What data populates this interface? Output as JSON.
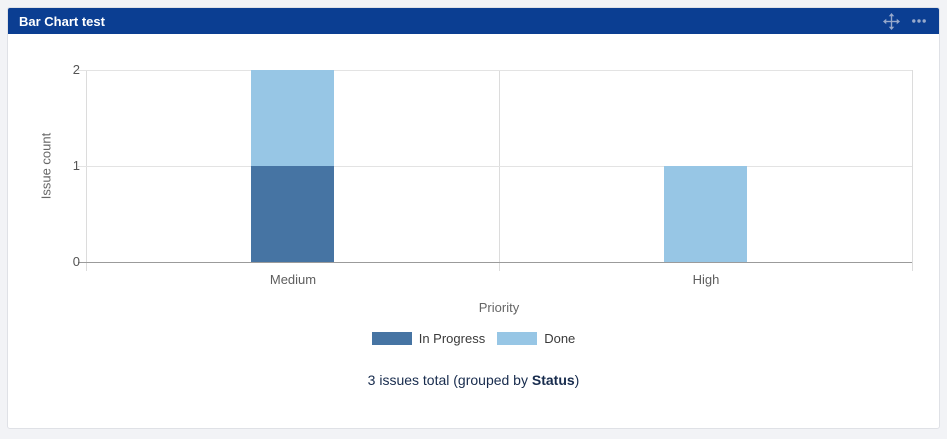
{
  "page": {
    "background": "#F2F3F6"
  },
  "gadget": {
    "title": "Bar Chart test",
    "header_color": "#0B3E92",
    "icons": [
      {
        "name": "move-gadget-icon"
      },
      {
        "name": "more-options-icon"
      }
    ],
    "icon_color": "#97A9CB"
  },
  "chart_data": {
    "type": "bar",
    "stacked": true,
    "categories": [
      "Medium",
      "High"
    ],
    "series": [
      {
        "name": "In Progress",
        "color": "#4674A3",
        "values": [
          1,
          0
        ]
      },
      {
        "name": "Done",
        "color": "#97C6E5",
        "values": [
          1,
          1
        ]
      }
    ],
    "title": "",
    "xlabel": "Priority",
    "ylabel": "Issue count",
    "yticks": [
      0,
      1,
      2
    ],
    "ylim": [
      0,
      2
    ],
    "grid": true,
    "legend_position": "bottom"
  },
  "footer": {
    "text_prefix": "3 issues total (grouped by ",
    "group_field": "Status",
    "text_suffix": ")"
  }
}
